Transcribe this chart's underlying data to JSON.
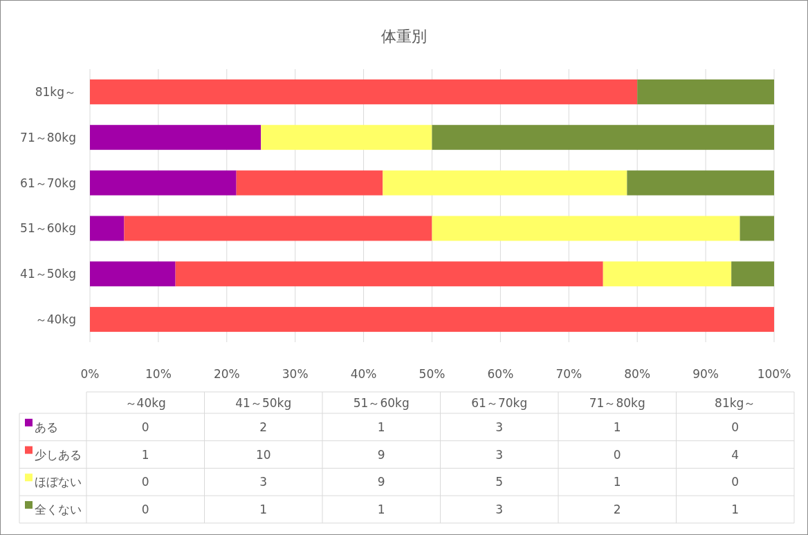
{
  "chart_data": [
    {
      "type": "bar",
      "orientation": "horizontal",
      "stacked": true,
      "title": "体重別",
      "categories": [
        "81kg～",
        "71～80kg",
        "61～70kg",
        "51～60kg",
        "41～50kg",
        "～40kg"
      ],
      "series": [
        {
          "color": "#a200a8",
          "values": [
            0,
            25,
            21.4,
            5,
            12.5,
            0
          ]
        },
        {
          "color": "#ff5050",
          "values": [
            80,
            0,
            21.4,
            45,
            62.5,
            100
          ]
        },
        {
          "color": "#ffff66",
          "values": [
            0,
            25,
            35.7,
            45,
            18.75,
            0
          ]
        },
        {
          "color": "#77933c",
          "values": [
            20,
            50,
            21.5,
            5,
            6.25,
            0
          ]
        }
      ],
      "xlim": [
        0,
        100
      ],
      "xticks": [
        {
          "value": 0,
          "label": "0%"
        },
        {
          "value": 10,
          "label": "10%"
        },
        {
          "value": 20,
          "label": "20%"
        },
        {
          "value": 30,
          "label": "30%"
        },
        {
          "value": 40,
          "label": "40%"
        },
        {
          "value": 50,
          "label": "50%"
        },
        {
          "value": 60,
          "label": "60%"
        },
        {
          "value": 70,
          "label": "70%"
        },
        {
          "value": 80,
          "label": "80%"
        },
        {
          "value": 90,
          "label": "90%"
        },
        {
          "value": 100,
          "label": "100%"
        }
      ],
      "grid": "x"
    },
    {
      "type": "other",
      "data_labels": true,
      "categories": [
        "～40kg",
        "41～50kg",
        "51～60kg",
        "61～70kg",
        "71～80kg",
        "81kg～"
      ],
      "series": [
        {
          "name": "ある",
          "color": "#a200a8",
          "values": [
            0,
            2,
            1,
            3,
            1,
            0
          ]
        },
        {
          "name": "少しある",
          "color": "#ff5050",
          "values": [
            1,
            10,
            9,
            3,
            0,
            4
          ]
        },
        {
          "name": "ほぼない",
          "color": "#ffff66",
          "values": [
            0,
            3,
            9,
            5,
            1,
            0
          ]
        },
        {
          "name": "全くない",
          "color": "#77933c",
          "values": [
            0,
            1,
            1,
            3,
            2,
            1
          ]
        }
      ]
    }
  ]
}
